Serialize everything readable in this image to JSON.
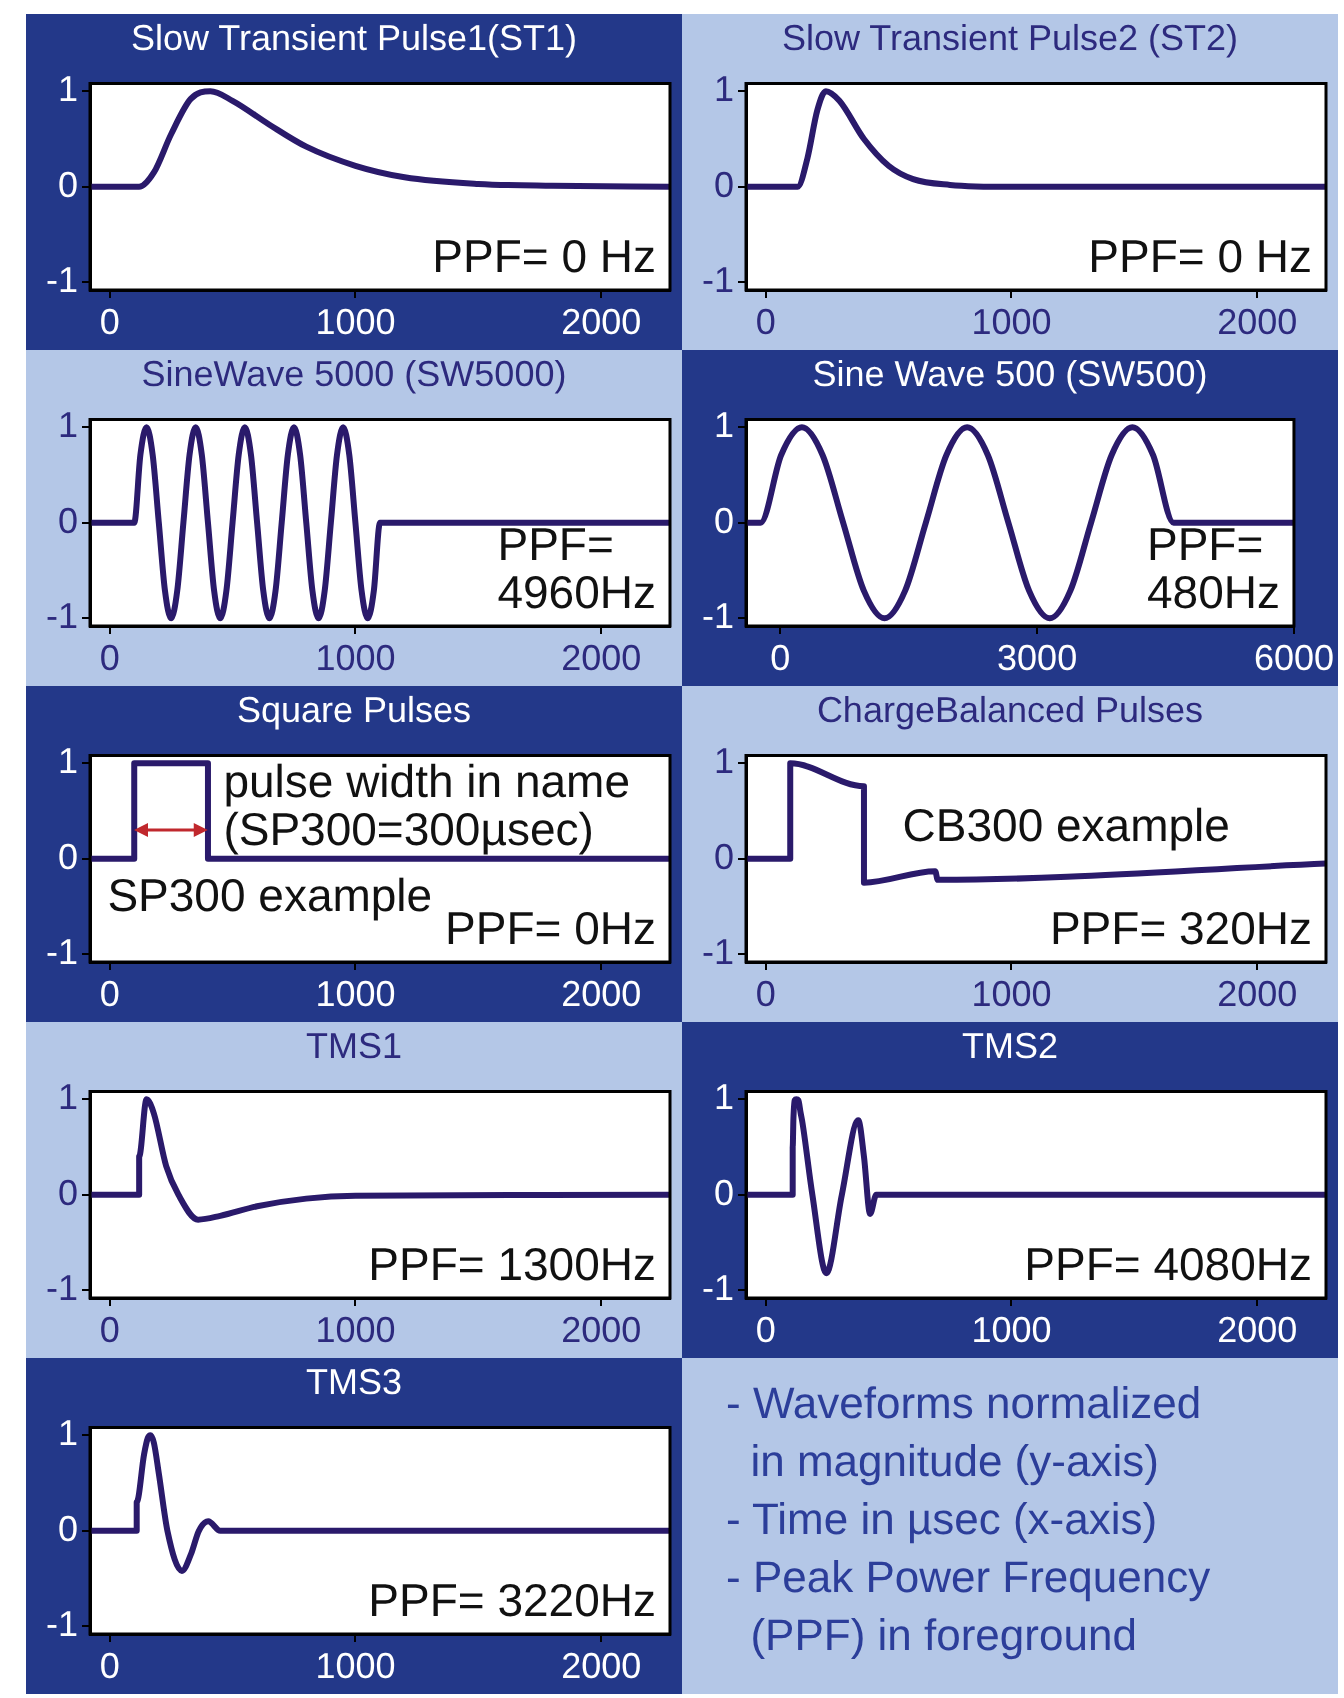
{
  "chart_data": [
    {
      "type": "line",
      "title": "Slow Transient Pulse1(ST1)",
      "color": "#2a1a6b",
      "marker": "none",
      "xlim": [
        -80,
        2280
      ],
      "xticks": [
        0,
        1000,
        2000
      ],
      "ylim": [
        -1.08,
        1.08
      ],
      "yticks": [
        -1,
        0,
        1
      ],
      "x": [
        -80,
        120,
        180,
        250,
        330,
        410,
        500,
        650,
        800,
        1000,
        1200,
        1500,
        1800,
        2280
      ],
      "values": [
        0,
        0,
        0.15,
        0.55,
        0.92,
        1,
        0.9,
        0.65,
        0.42,
        0.22,
        0.1,
        0.03,
        0.01,
        0
      ],
      "annotations": [
        "PPF= 0 Hz"
      ]
    },
    {
      "type": "line",
      "title": "Slow Transient Pulse2 (ST2)",
      "color": "#2a1a6b",
      "marker": "none",
      "xlim": [
        -80,
        2280
      ],
      "xticks": [
        0,
        1000,
        2000
      ],
      "ylim": [
        -1.08,
        1.08
      ],
      "yticks": [
        -1,
        0,
        1
      ],
      "x": [
        -80,
        130,
        170,
        210,
        245,
        300,
        400,
        500,
        600,
        750,
        1000,
        2280
      ],
      "values": [
        0,
        0,
        0.3,
        0.8,
        1,
        0.9,
        0.5,
        0.22,
        0.08,
        0.02,
        0,
        0
      ],
      "annotations": [
        "PPF= 0 Hz"
      ]
    },
    {
      "type": "line",
      "title": "SineWave 5000 (SW5000)",
      "color": "#2a1a6b",
      "marker": "none",
      "xlim": [
        -80,
        2280
      ],
      "xticks": [
        0,
        1000,
        2000
      ],
      "ylim": [
        -1.08,
        1.08
      ],
      "yticks": [
        -1,
        0,
        1
      ],
      "x": [
        -80,
        100,
        125,
        150,
        175,
        200,
        225,
        250,
        275,
        300,
        325,
        350,
        375,
        400,
        425,
        450,
        475,
        500,
        525,
        550,
        575,
        600,
        625,
        650,
        675,
        700,
        725,
        750,
        775,
        800,
        825,
        850,
        875,
        900,
        925,
        950,
        975,
        1000,
        1025,
        1050,
        1075,
        1100,
        2280
      ],
      "values": [
        0,
        0,
        0.71,
        1,
        0.71,
        0,
        -0.71,
        -1,
        -0.71,
        0,
        0.71,
        1,
        0.71,
        0,
        -0.71,
        -1,
        -0.71,
        0,
        0.71,
        1,
        0.71,
        0,
        -0.71,
        -1,
        -0.71,
        0,
        0.71,
        1,
        0.71,
        0,
        -0.71,
        -1,
        -0.71,
        0,
        0.71,
        1,
        0.71,
        0,
        -0.71,
        -1,
        -0.71,
        0,
        0
      ],
      "annotations": [
        "PPF=\n4960Hz"
      ]
    },
    {
      "type": "line",
      "title": "Sine Wave 500 (SW500)",
      "color": "#2a1a6b",
      "marker": "none",
      "xlim": [
        -400,
        6000
      ],
      "xticks": [
        0,
        3000,
        6000
      ],
      "ylim": [
        -1.08,
        1.08
      ],
      "yticks": [
        -1,
        0,
        1
      ],
      "x": [
        -400,
        -230,
        11,
        253,
        494,
        735,
        976,
        1218,
        1459,
        1700,
        1941,
        2183,
        2424,
        2665,
        2906,
        3148,
        3389,
        3630,
        3871,
        4113,
        4354,
        4595,
        6000
      ],
      "values": [
        0,
        0,
        0.71,
        1,
        0.71,
        0,
        -0.71,
        -1,
        -0.71,
        0,
        0.71,
        1,
        0.71,
        0,
        -0.71,
        -1,
        -0.71,
        0,
        0.71,
        1,
        0.71,
        0,
        0
      ],
      "annotations": [
        "PPF=\n480Hz"
      ]
    },
    {
      "type": "line",
      "title": "Square Pulses",
      "color": "#2a1a6b",
      "marker": "none",
      "xlim": [
        -80,
        2280
      ],
      "xticks": [
        0,
        1000,
        2000
      ],
      "ylim": [
        -1.08,
        1.08
      ],
      "yticks": [
        -1,
        0,
        1
      ],
      "x": [
        -80,
        100,
        100,
        400,
        400,
        2280
      ],
      "values": [
        0,
        0,
        1,
        1,
        0,
        0
      ],
      "annotations": [
        "pulse width in name\n(SP300=300µsec)",
        "SP300 example",
        "PPF= 0Hz"
      ]
    },
    {
      "type": "line",
      "title": "ChargeBalanced Pulses",
      "color": "#2a1a6b",
      "marker": "none",
      "xlim": [
        -80,
        2280
      ],
      "xticks": [
        0,
        1000,
        2000
      ],
      "ylim": [
        -1.08,
        1.08
      ],
      "yticks": [
        -1,
        0,
        1
      ],
      "x": [
        -80,
        100,
        100,
        400,
        400,
        690,
        700,
        2280
      ],
      "values": [
        0,
        0,
        1,
        0.76,
        -0.25,
        -0.13,
        -0.22,
        -0.05
      ],
      "annotations": [
        "CB300 example",
        "PPF= 320Hz"
      ]
    },
    {
      "type": "line",
      "title": "TMS1",
      "color": "#2a1a6b",
      "marker": "none",
      "xlim": [
        -80,
        2280
      ],
      "xticks": [
        0,
        1000,
        2000
      ],
      "ylim": [
        -1.08,
        1.08
      ],
      "yticks": [
        -1,
        0,
        1
      ],
      "x": [
        -80,
        120,
        120,
        150,
        180,
        230,
        280,
        360,
        450,
        600,
        800,
        1000,
        2280
      ],
      "values": [
        0,
        0,
        0.4,
        1,
        0.85,
        0.3,
        0,
        -0.26,
        -0.22,
        -0.12,
        -0.04,
        -0.01,
        0
      ],
      "annotations": [
        "PPF= 1300Hz"
      ]
    },
    {
      "type": "line",
      "title": "TMS2",
      "color": "#2a1a6b",
      "marker": "none",
      "xlim": [
        -80,
        2280
      ],
      "xticks": [
        0,
        1000,
        2000
      ],
      "ylim": [
        -1.08,
        1.08
      ],
      "yticks": [
        -1,
        0,
        1
      ],
      "x": [
        -80,
        110,
        110,
        113,
        118,
        125,
        133,
        142,
        150,
        190,
        247,
        310,
        377,
        400,
        425,
        450,
        2280
      ],
      "values": [
        0,
        0,
        0.5,
        0.8,
        0.99,
        1,
        0.99,
        0.86,
        0.75,
        0,
        -0.82,
        0,
        0.78,
        0.4,
        -0.2,
        0,
        0
      ],
      "annotations": [
        "PPF= 4080Hz"
      ]
    },
    {
      "type": "line",
      "title": "TMS3",
      "color": "#2a1a6b",
      "marker": "none",
      "xlim": [
        -80,
        2280
      ],
      "xticks": [
        0,
        1000,
        2000
      ],
      "ylim": [
        -1.08,
        1.08
      ],
      "yticks": [
        -1,
        0,
        1
      ],
      "x": [
        -80,
        110,
        110,
        140,
        155,
        166,
        180,
        200,
        235,
        294,
        330,
        363,
        401,
        450,
        2280
      ],
      "values": [
        0,
        0,
        0.3,
        0.8,
        0.97,
        1,
        0.92,
        0.6,
        0,
        -0.42,
        -0.25,
        0,
        0.1,
        0,
        0
      ],
      "annotations": [
        "PPF= 3220Hz"
      ]
    },
    {
      "type": "other",
      "annotations": [
        "- Waveforms normalized\n  in magnitude (y-axis)",
        "- Time in µsec (x-axis)",
        "- Peak Power Frequency\n  (PPF) in foreground"
      ]
    }
  ]
}
